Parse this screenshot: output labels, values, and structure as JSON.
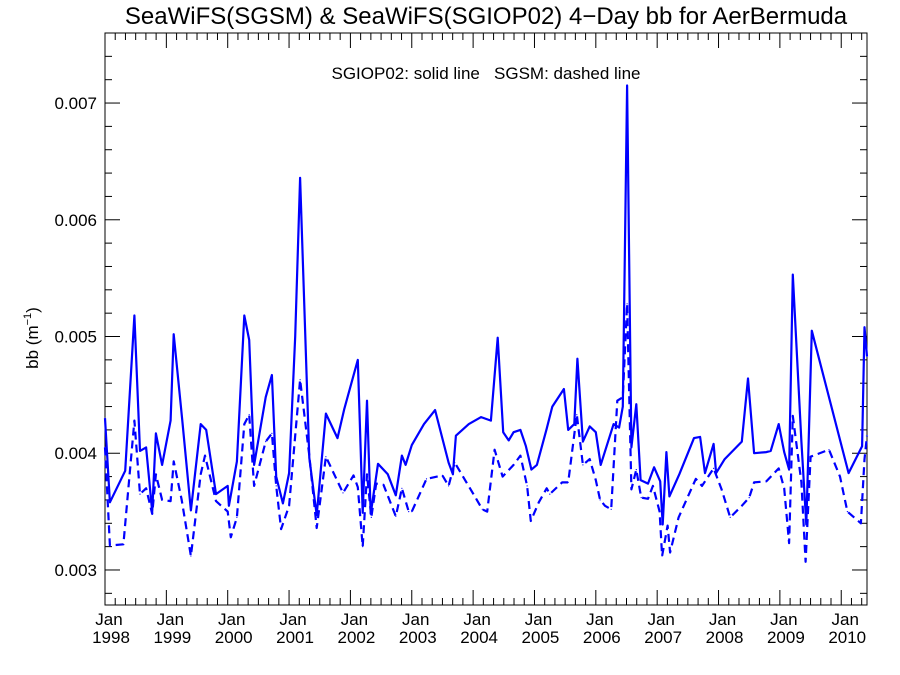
{
  "chart_data": {
    "type": "line",
    "title": "SeaWiFS(SGSM) & SeaWiFS(SGIOP02) 4−Day bb for AerBermuda",
    "annotation": "SGIOP02: solid line   SGSM: dashed line",
    "ylabel": "bb (m",
    "ylabel_sup": "−1",
    "ylabel_close": ")",
    "xlim": [
      1998.0,
      2010.42
    ],
    "ylim": [
      0.0027,
      0.0076
    ],
    "yticks": [
      {
        "value": 0.003,
        "label": "0.003"
      },
      {
        "value": 0.004,
        "label": "0.004"
      },
      {
        "value": 0.005,
        "label": "0.005"
      },
      {
        "value": 0.006,
        "label": "0.006"
      },
      {
        "value": 0.007,
        "label": "0.007"
      }
    ],
    "xticks": [
      {
        "value": 1998,
        "month": "Jan",
        "year": "1998"
      },
      {
        "value": 1999,
        "month": "Jan",
        "year": "1999"
      },
      {
        "value": 2000,
        "month": "Jan",
        "year": "2000"
      },
      {
        "value": 2001,
        "month": "Jan",
        "year": "2001"
      },
      {
        "value": 2002,
        "month": "Jan",
        "year": "2002"
      },
      {
        "value": 2003,
        "month": "Jan",
        "year": "2003"
      },
      {
        "value": 2004,
        "month": "Jan",
        "year": "2004"
      },
      {
        "value": 2005,
        "month": "Jan",
        "year": "2005"
      },
      {
        "value": 2006,
        "month": "Jan",
        "year": "2006"
      },
      {
        "value": 2007,
        "month": "Jan",
        "year": "2007"
      },
      {
        "value": 2008,
        "month": "Jan",
        "year": "2008"
      },
      {
        "value": 2009,
        "month": "Jan",
        "year": "2009"
      },
      {
        "value": 2010,
        "month": "Jan",
        "year": "2010"
      }
    ],
    "color": "#0000ff",
    "series": [
      {
        "style": "solid",
        "points": [
          [
            1998.0,
            0.0043
          ],
          [
            1998.08,
            0.00358
          ],
          [
            1998.33,
            0.00385
          ],
          [
            1998.48,
            0.00518
          ],
          [
            1998.57,
            0.00402
          ],
          [
            1998.67,
            0.00405
          ],
          [
            1998.77,
            0.0035
          ],
          [
            1998.83,
            0.00417
          ],
          [
            1998.93,
            0.0039
          ],
          [
            1999.07,
            0.00428
          ],
          [
            1999.12,
            0.00502
          ],
          [
            1999.26,
            0.00428
          ],
          [
            1999.4,
            0.00351
          ],
          [
            1999.56,
            0.00425
          ],
          [
            1999.65,
            0.0042
          ],
          [
            1999.81,
            0.00365
          ],
          [
            2000.0,
            0.00372
          ],
          [
            2000.02,
            0.00355
          ],
          [
            2000.15,
            0.00393
          ],
          [
            2000.27,
            0.00518
          ],
          [
            2000.35,
            0.00497
          ],
          [
            2000.43,
            0.0039
          ],
          [
            2000.62,
            0.00448
          ],
          [
            2000.72,
            0.00467
          ],
          [
            2000.79,
            0.0038
          ],
          [
            2000.9,
            0.00357
          ],
          [
            2001.0,
            0.00383
          ],
          [
            2001.1,
            0.005
          ],
          [
            2001.18,
            0.00636
          ],
          [
            2001.33,
            0.00396
          ],
          [
            2001.45,
            0.00347
          ],
          [
            2001.6,
            0.00434
          ],
          [
            2001.79,
            0.00413
          ],
          [
            2001.9,
            0.00438
          ],
          [
            2002.12,
            0.0048
          ],
          [
            2002.2,
            0.00349
          ],
          [
            2002.27,
            0.00445
          ],
          [
            2002.33,
            0.00348
          ],
          [
            2002.45,
            0.00391
          ],
          [
            2002.61,
            0.00382
          ],
          [
            2002.74,
            0.00364
          ],
          [
            2002.84,
            0.00398
          ],
          [
            2002.9,
            0.0039
          ],
          [
            2003.0,
            0.00407
          ],
          [
            2003.2,
            0.00425
          ],
          [
            2003.38,
            0.00437
          ],
          [
            2003.6,
            0.00392
          ],
          [
            2003.67,
            0.00382
          ],
          [
            2003.72,
            0.00415
          ],
          [
            2003.93,
            0.00425
          ],
          [
            2004.13,
            0.00431
          ],
          [
            2004.29,
            0.00428
          ],
          [
            2004.4,
            0.00499
          ],
          [
            2004.49,
            0.00418
          ],
          [
            2004.58,
            0.00411
          ],
          [
            2004.66,
            0.00418
          ],
          [
            2004.77,
            0.0042
          ],
          [
            2004.86,
            0.00406
          ],
          [
            2004.95,
            0.00386
          ],
          [
            2005.04,
            0.0039
          ],
          [
            2005.2,
            0.00421
          ],
          [
            2005.29,
            0.0044
          ],
          [
            2005.48,
            0.00455
          ],
          [
            2005.55,
            0.0042
          ],
          [
            2005.65,
            0.00425
          ],
          [
            2005.7,
            0.00481
          ],
          [
            2005.79,
            0.0041
          ],
          [
            2005.9,
            0.00423
          ],
          [
            2006.0,
            0.00418
          ],
          [
            2006.08,
            0.0039
          ],
          [
            2006.29,
            0.00425
          ],
          [
            2006.38,
            0.00422
          ],
          [
            2006.44,
            0.0044
          ],
          [
            2006.51,
            0.00715
          ],
          [
            2006.58,
            0.00405
          ],
          [
            2006.66,
            0.00442
          ],
          [
            2006.73,
            0.00377
          ],
          [
            2006.85,
            0.00374
          ],
          [
            2006.95,
            0.00388
          ],
          [
            2007.05,
            0.00376
          ],
          [
            2007.09,
            0.00339
          ],
          [
            2007.15,
            0.00401
          ],
          [
            2007.2,
            0.00363
          ],
          [
            2007.36,
            0.00382
          ],
          [
            2007.6,
            0.00413
          ],
          [
            2007.7,
            0.00414
          ],
          [
            2007.78,
            0.00383
          ],
          [
            2007.92,
            0.00408
          ],
          [
            2007.96,
            0.00383
          ],
          [
            2008.1,
            0.00395
          ],
          [
            2008.38,
            0.0041
          ],
          [
            2008.48,
            0.00464
          ],
          [
            2008.58,
            0.004
          ],
          [
            2008.78,
            0.00401
          ],
          [
            2008.85,
            0.00402
          ],
          [
            2008.98,
            0.00425
          ],
          [
            2009.07,
            0.00401
          ],
          [
            2009.15,
            0.00386
          ],
          [
            2009.21,
            0.00553
          ],
          [
            2009.35,
            0.0041
          ],
          [
            2009.43,
            0.00339
          ],
          [
            2009.52,
            0.00505
          ],
          [
            2010.12,
            0.00383
          ],
          [
            2010.34,
            0.00406
          ],
          [
            2010.38,
            0.00508
          ],
          [
            2010.42,
            0.00483
          ]
        ]
      },
      {
        "style": "dashed",
        "points": [
          [
            1998.0,
            0.00405
          ],
          [
            1998.08,
            0.00321
          ],
          [
            1998.3,
            0.00322
          ],
          [
            1998.48,
            0.00428
          ],
          [
            1998.57,
            0.00365
          ],
          [
            1998.67,
            0.0037
          ],
          [
            1998.77,
            0.00348
          ],
          [
            1998.83,
            0.00382
          ],
          [
            1998.93,
            0.0036
          ],
          [
            1999.07,
            0.00359
          ],
          [
            1999.12,
            0.00393
          ],
          [
            1999.25,
            0.0036
          ],
          [
            1999.4,
            0.00312
          ],
          [
            1999.56,
            0.00382
          ],
          [
            1999.63,
            0.00398
          ],
          [
            1999.81,
            0.00359
          ],
          [
            2000.0,
            0.0035
          ],
          [
            2000.05,
            0.00328
          ],
          [
            2000.15,
            0.00345
          ],
          [
            2000.27,
            0.00425
          ],
          [
            2000.35,
            0.00433
          ],
          [
            2000.43,
            0.00372
          ],
          [
            2000.62,
            0.0041
          ],
          [
            2000.72,
            0.00417
          ],
          [
            2000.79,
            0.00372
          ],
          [
            2000.87,
            0.00335
          ],
          [
            2001.0,
            0.00355
          ],
          [
            2001.1,
            0.00415
          ],
          [
            2001.18,
            0.00463
          ],
          [
            2001.33,
            0.00398
          ],
          [
            2001.45,
            0.00336
          ],
          [
            2001.6,
            0.00397
          ],
          [
            2001.88,
            0.00366
          ],
          [
            2002.05,
            0.00381
          ],
          [
            2002.12,
            0.00371
          ],
          [
            2002.2,
            0.0032
          ],
          [
            2002.27,
            0.00382
          ],
          [
            2002.34,
            0.00345
          ],
          [
            2002.42,
            0.00374
          ],
          [
            2002.54,
            0.00373
          ],
          [
            2002.74,
            0.00346
          ],
          [
            2002.84,
            0.0037
          ],
          [
            2002.95,
            0.0035
          ],
          [
            2003.0,
            0.0035
          ],
          [
            2003.24,
            0.00378
          ],
          [
            2003.5,
            0.00381
          ],
          [
            2003.6,
            0.00372
          ],
          [
            2003.7,
            0.00392
          ],
          [
            2004.05,
            0.00361
          ],
          [
            2004.15,
            0.00352
          ],
          [
            2004.23,
            0.0035
          ],
          [
            2004.35,
            0.00403
          ],
          [
            2004.48,
            0.0038
          ],
          [
            2004.66,
            0.0039
          ],
          [
            2004.77,
            0.00398
          ],
          [
            2004.88,
            0.00372
          ],
          [
            2004.94,
            0.00342
          ],
          [
            2005.07,
            0.00358
          ],
          [
            2005.2,
            0.0037
          ],
          [
            2005.25,
            0.00365
          ],
          [
            2005.45,
            0.00375
          ],
          [
            2005.55,
            0.00375
          ],
          [
            2005.69,
            0.00433
          ],
          [
            2005.79,
            0.0039
          ],
          [
            2005.9,
            0.00395
          ],
          [
            2006.0,
            0.00377
          ],
          [
            2006.07,
            0.0036
          ],
          [
            2006.15,
            0.00355
          ],
          [
            2006.25,
            0.00352
          ],
          [
            2006.35,
            0.00445
          ],
          [
            2006.44,
            0.00448
          ],
          [
            2006.51,
            0.00528
          ],
          [
            2006.58,
            0.00369
          ],
          [
            2006.66,
            0.00386
          ],
          [
            2006.74,
            0.00362
          ],
          [
            2006.85,
            0.00361
          ],
          [
            2006.93,
            0.00372
          ],
          [
            2007.04,
            0.0035
          ],
          [
            2007.08,
            0.00312
          ],
          [
            2007.17,
            0.00338
          ],
          [
            2007.21,
            0.00315
          ],
          [
            2007.35,
            0.00345
          ],
          [
            2007.63,
            0.00378
          ],
          [
            2007.73,
            0.00372
          ],
          [
            2007.92,
            0.00387
          ],
          [
            2008.05,
            0.00369
          ],
          [
            2008.19,
            0.00345
          ],
          [
            2008.38,
            0.00355
          ],
          [
            2008.5,
            0.00362
          ],
          [
            2008.58,
            0.00375
          ],
          [
            2008.78,
            0.00376
          ],
          [
            2008.98,
            0.00387
          ],
          [
            2009.07,
            0.0037
          ],
          [
            2009.15,
            0.00323
          ],
          [
            2009.21,
            0.00432
          ],
          [
            2009.35,
            0.00375
          ],
          [
            2009.42,
            0.00307
          ],
          [
            2009.5,
            0.00397
          ],
          [
            2009.8,
            0.00403
          ],
          [
            2009.98,
            0.0038
          ],
          [
            2010.1,
            0.0035
          ],
          [
            2010.32,
            0.0034
          ],
          [
            2010.38,
            0.00395
          ],
          [
            2010.42,
            0.00415
          ]
        ]
      }
    ]
  }
}
